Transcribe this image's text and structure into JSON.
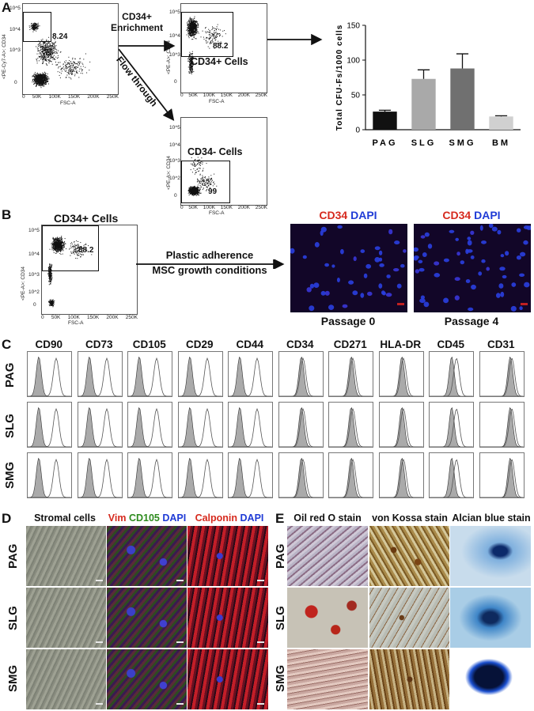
{
  "panels": {
    "A": "A",
    "B": "B",
    "C": "C",
    "D": "D",
    "E": "E"
  },
  "panel_a": {
    "plot1": {
      "y_label": "<PE-Cy7-A>: CD34",
      "x_label": "FSC-A",
      "gate_value": "8.24",
      "x_ticks": [
        "0",
        "50K",
        "100K",
        "150K",
        "200K",
        "250K"
      ],
      "y_ticks": [
        "10^5",
        "10^4",
        "10^3",
        "0"
      ]
    },
    "plot2": {
      "y_label": "<PE-A>: CD34",
      "x_label": "FSC-A",
      "gate_value": "88.2",
      "title": "CD34+ Cells",
      "x_ticks": [
        "0",
        "50K",
        "100K",
        "150K",
        "200K",
        "250K"
      ],
      "y_ticks": [
        "10^5",
        "10^4",
        "10^3",
        "0"
      ]
    },
    "plot3": {
      "y_label": "<PE-A>: CD34",
      "x_label": "FSC-A",
      "gate_value": "99",
      "title": "CD34- Cells",
      "x_ticks": [
        "0",
        "50K",
        "100K",
        "150K",
        "200K",
        "250K"
      ],
      "y_ticks": [
        "10^5",
        "10^4",
        "10^3",
        "10^2",
        "0"
      ]
    },
    "arrow_enrich_line1": "CD34+",
    "arrow_enrich_line2": "Enrichment",
    "arrow_flow": "Flow through"
  },
  "chart_data": {
    "type": "bar",
    "categories": [
      "PAG",
      "SLG",
      "SMG",
      "BM"
    ],
    "values": [
      26,
      73,
      88,
      19
    ],
    "errors": [
      2,
      13,
      21,
      1
    ],
    "colors": [
      "#111111",
      "#a9a9a9",
      "#707070",
      "#d0d0d0"
    ],
    "ylabel": "Total CFU-Fs/1000 cells",
    "ylim": [
      0,
      150
    ],
    "yticks": [
      0,
      50,
      100,
      150
    ]
  },
  "panel_b": {
    "plot_title": "CD34+ Cells",
    "y_label": "<PE-A>: CD34",
    "x_label": "FSC-A",
    "gate_value": "88.2",
    "x_ticks": [
      "0",
      "50K",
      "100K",
      "150K",
      "200K",
      "250K"
    ],
    "y_ticks": [
      "10^5",
      "10^4",
      "10^3",
      "10^2",
      "0"
    ],
    "arrow_line1": "Plastic adherence",
    "arrow_line2": "MSC growth conditions",
    "img1_label_red": "CD34",
    "img1_label_blue": "DAPI",
    "img1_caption": "Passage 0",
    "img2_label_red": "CD34",
    "img2_label_blue": "DAPI",
    "img2_caption": "Passage 4",
    "red_color": "#d62a1e",
    "blue_color": "#1f3bd6"
  },
  "panel_c": {
    "markers": [
      "CD90",
      "CD73",
      "CD105",
      "CD29",
      "CD44",
      "CD34",
      "CD271",
      "HLA-DR",
      "CD45",
      "CD31"
    ],
    "rows": [
      "PAG",
      "SLG",
      "SMG"
    ]
  },
  "panel_d": {
    "col1": "Stromal cells",
    "col2": {
      "a": "Vim",
      "b": "CD105",
      "c": "DAPI"
    },
    "col3": {
      "a": "Calponin",
      "b": "DAPI"
    },
    "rows": [
      "PAG",
      "SLG",
      "SMG"
    ],
    "colors": {
      "red": "#d62a1e",
      "green": "#2e8b1e",
      "blue": "#1f3bd6"
    }
  },
  "panel_e": {
    "cols": [
      "Oil red O stain",
      "von Kossa stain",
      "Alcian blue stain"
    ],
    "rows": [
      "PAG",
      "SLG",
      "SMG"
    ]
  }
}
